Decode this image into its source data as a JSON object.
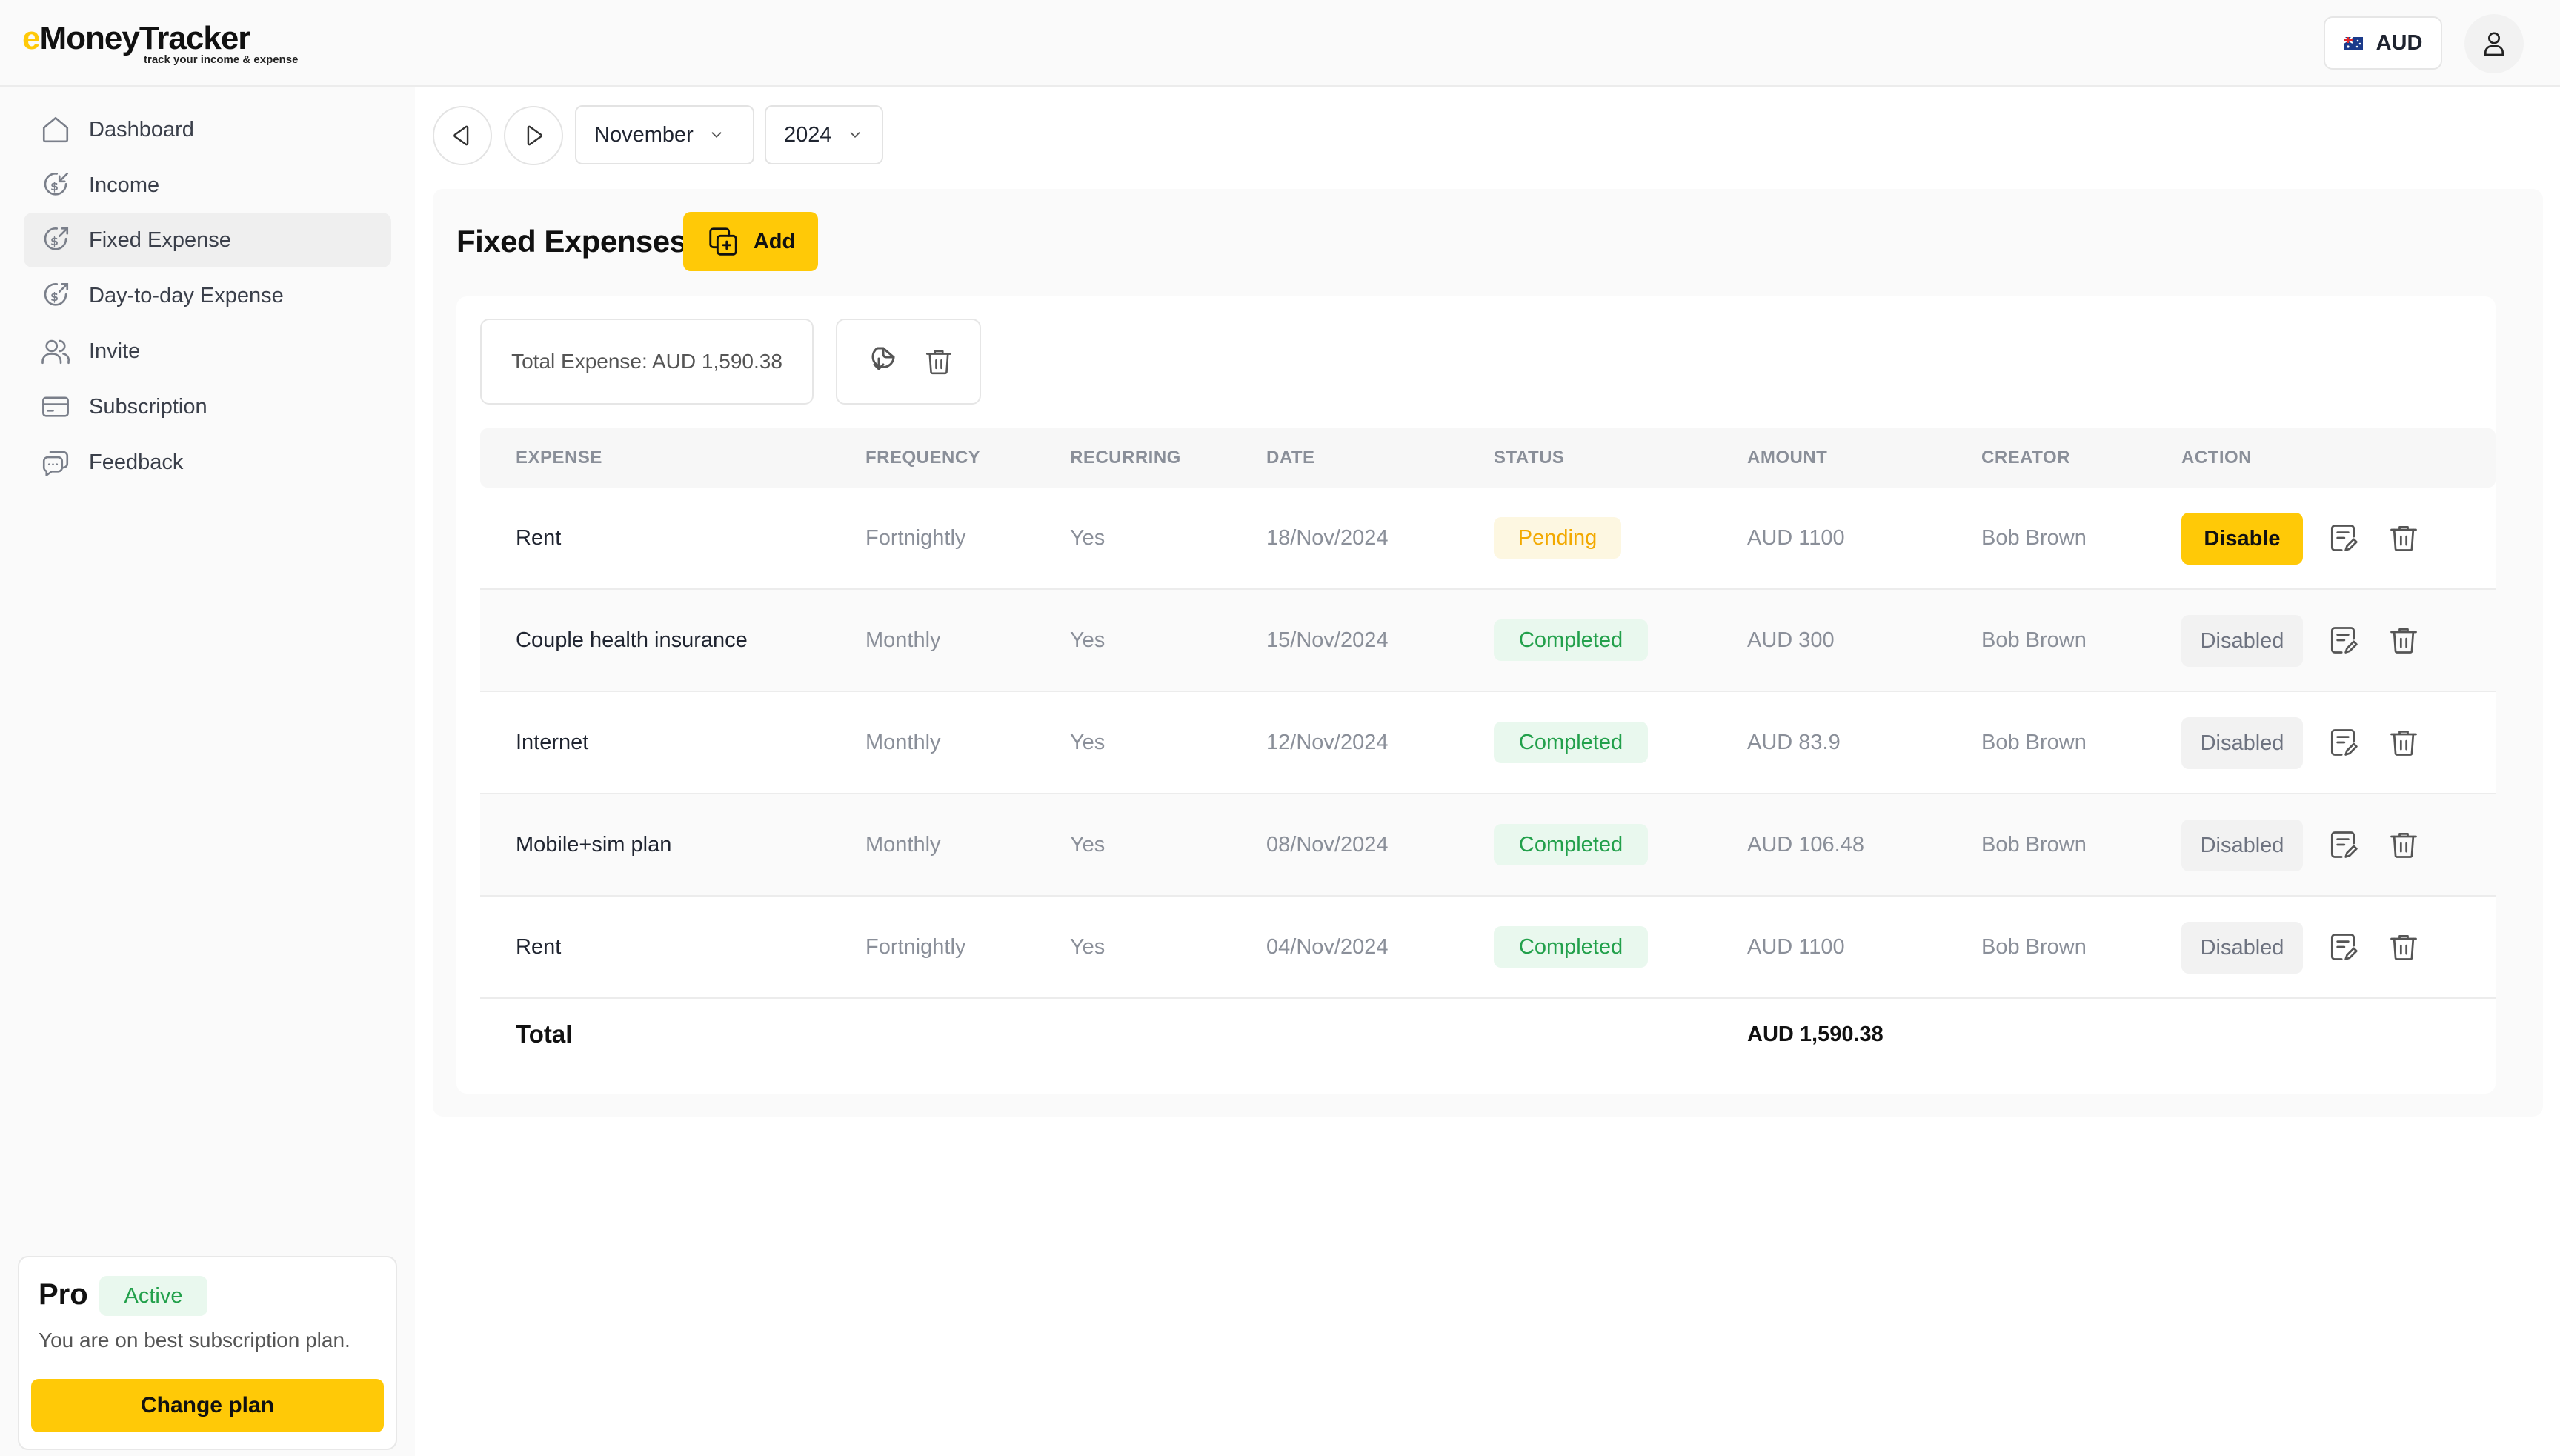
{
  "app": {
    "logo_first": "e",
    "logo_rest": "MoneyTracker",
    "tagline": "track your income & expense"
  },
  "header": {
    "currency": "AUD"
  },
  "sidebar": {
    "items": [
      {
        "label": "Dashboard",
        "icon": "home-icon"
      },
      {
        "label": "Income",
        "icon": "income-icon"
      },
      {
        "label": "Fixed Expense",
        "icon": "fixed-expense-icon",
        "active": true
      },
      {
        "label": "Day-to-day Expense",
        "icon": "day-expense-icon"
      },
      {
        "label": "Invite",
        "icon": "users-icon"
      },
      {
        "label": "Subscription",
        "icon": "card-icon"
      },
      {
        "label": "Feedback",
        "icon": "chat-icon"
      }
    ],
    "plan": {
      "name": "Pro",
      "badge": "Active",
      "description": "You are on best subscription plan.",
      "button": "Change plan"
    }
  },
  "toolbar": {
    "month": "November",
    "year": "2024"
  },
  "main": {
    "title": "Fixed Expenses",
    "add_label": "Add",
    "total_expense": "Total Expense: AUD 1,590.38",
    "columns": {
      "expense": "EXPENSE",
      "frequency": "FREQUENCY",
      "recurring": "RECURRING",
      "date": "DATE",
      "status": "STATUS",
      "amount": "AMOUNT",
      "creator": "CREATOR",
      "action": "ACTION"
    },
    "rows": [
      {
        "expense": "Rent",
        "frequency": "Fortnightly",
        "recurring": "Yes",
        "date": "18/Nov/2024",
        "status": "Pending",
        "amount": "AUD 1100",
        "creator": "Bob Brown",
        "action": "Disable"
      },
      {
        "expense": "Couple health insurance",
        "frequency": "Monthly",
        "recurring": "Yes",
        "date": "15/Nov/2024",
        "status": "Completed",
        "amount": "AUD 300",
        "creator": "Bob Brown",
        "action": "Disabled"
      },
      {
        "expense": "Internet",
        "frequency": "Monthly",
        "recurring": "Yes",
        "date": "12/Nov/2024",
        "status": "Completed",
        "amount": "AUD 83.9",
        "creator": "Bob Brown",
        "action": "Disabled"
      },
      {
        "expense": "Mobile+sim plan",
        "frequency": "Monthly",
        "recurring": "Yes",
        "date": "08/Nov/2024",
        "status": "Completed",
        "amount": "AUD 106.48",
        "creator": "Bob Brown",
        "action": "Disabled"
      },
      {
        "expense": "Rent",
        "frequency": "Fortnightly",
        "recurring": "Yes",
        "date": "04/Nov/2024",
        "status": "Completed",
        "amount": "AUD 1100",
        "creator": "Bob Brown",
        "action": "Disabled"
      }
    ],
    "total_label": "Total",
    "total_amount": "AUD 1,590.38"
  },
  "colors": {
    "accent": "#ffc907",
    "success": "#22a04b",
    "pending": "#f2a900"
  }
}
